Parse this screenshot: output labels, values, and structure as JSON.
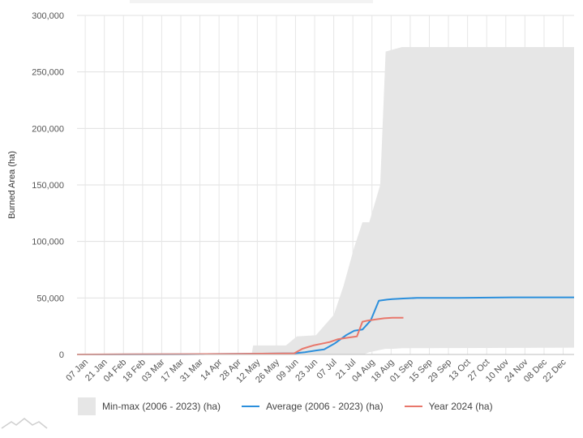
{
  "chart_data": {
    "type": "area",
    "title": "",
    "xlabel": "",
    "ylabel": "Burned Area (ha)",
    "ylim": [
      0,
      300000
    ],
    "yticks": [
      0,
      50000,
      100000,
      150000,
      200000,
      250000,
      300000
    ],
    "ytick_labels": [
      "0",
      "50,000",
      "100,000",
      "150,000",
      "200,000",
      "250,000",
      "300,000"
    ],
    "xlim": [
      1,
      365
    ],
    "xticks": [
      7,
      21,
      35,
      49,
      63,
      77,
      91,
      105,
      119,
      133,
      147,
      161,
      175,
      189,
      203,
      217,
      231,
      245,
      259,
      273,
      287,
      301,
      315,
      329,
      343,
      357
    ],
    "xtick_labels": [
      "07 Jan",
      "21 Jan",
      "04 Feb",
      "18 Feb",
      "03 Mar",
      "17 Mar",
      "31 Mar",
      "14 Apr",
      "28 Apr",
      "12 May",
      "26 May",
      "09 Jun",
      "23 Jun",
      "07 Jul",
      "21 Jul",
      "04 Aug",
      "18 Aug",
      "01 Sep",
      "15 Sep",
      "29 Sep",
      "13 Oct",
      "27 Oct",
      "10 Nov",
      "24 Nov",
      "08 Dec",
      "22 Dec"
    ],
    "grid": true,
    "legend_position": "bottom",
    "band": {
      "name": "Min-max (2006 - 2023) (ha)",
      "color": "#e6e6e6",
      "x": [
        1,
        120,
        129,
        130,
        154,
        162,
        176,
        189,
        196,
        204,
        210,
        211,
        215,
        223,
        227,
        233,
        239,
        365
      ],
      "min": [
        0,
        0,
        0,
        0,
        0,
        0,
        0,
        0,
        0,
        0,
        0,
        0,
        2000,
        4000,
        5000,
        5000,
        5500,
        6000
      ],
      "max": [
        0,
        500,
        1000,
        8000,
        8000,
        16000,
        17000,
        35000,
        60000,
        95000,
        117000,
        117000,
        117000,
        150000,
        268000,
        270000,
        272000,
        272000
      ]
    },
    "series": [
      {
        "name": "Average (2006 - 2023) (ha)",
        "color": "#2b8fdc",
        "x": [
          1,
          40,
          80,
          120,
          160,
          168,
          176,
          182,
          190,
          198,
          204,
          210,
          216,
          222,
          228,
          232,
          240,
          250,
          280,
          320,
          365
        ],
        "values": [
          0,
          100,
          200,
          500,
          1000,
          2000,
          3500,
          4500,
          10000,
          17000,
          21000,
          22000,
          30000,
          47500,
          48500,
          49000,
          49500,
          50000,
          50000,
          50500,
          50500
        ]
      },
      {
        "name": "Year 2024 (ha)",
        "color": "#e8776b",
        "x": [
          1,
          40,
          80,
          120,
          160,
          166,
          174,
          180,
          186,
          192,
          200,
          206,
          210,
          214,
          220,
          226,
          232,
          240
        ],
        "values": [
          0,
          200,
          300,
          500,
          1000,
          5000,
          8000,
          9500,
          11000,
          13500,
          15000,
          16000,
          29000,
          30000,
          31000,
          32000,
          32500,
          32500
        ]
      }
    ]
  }
}
